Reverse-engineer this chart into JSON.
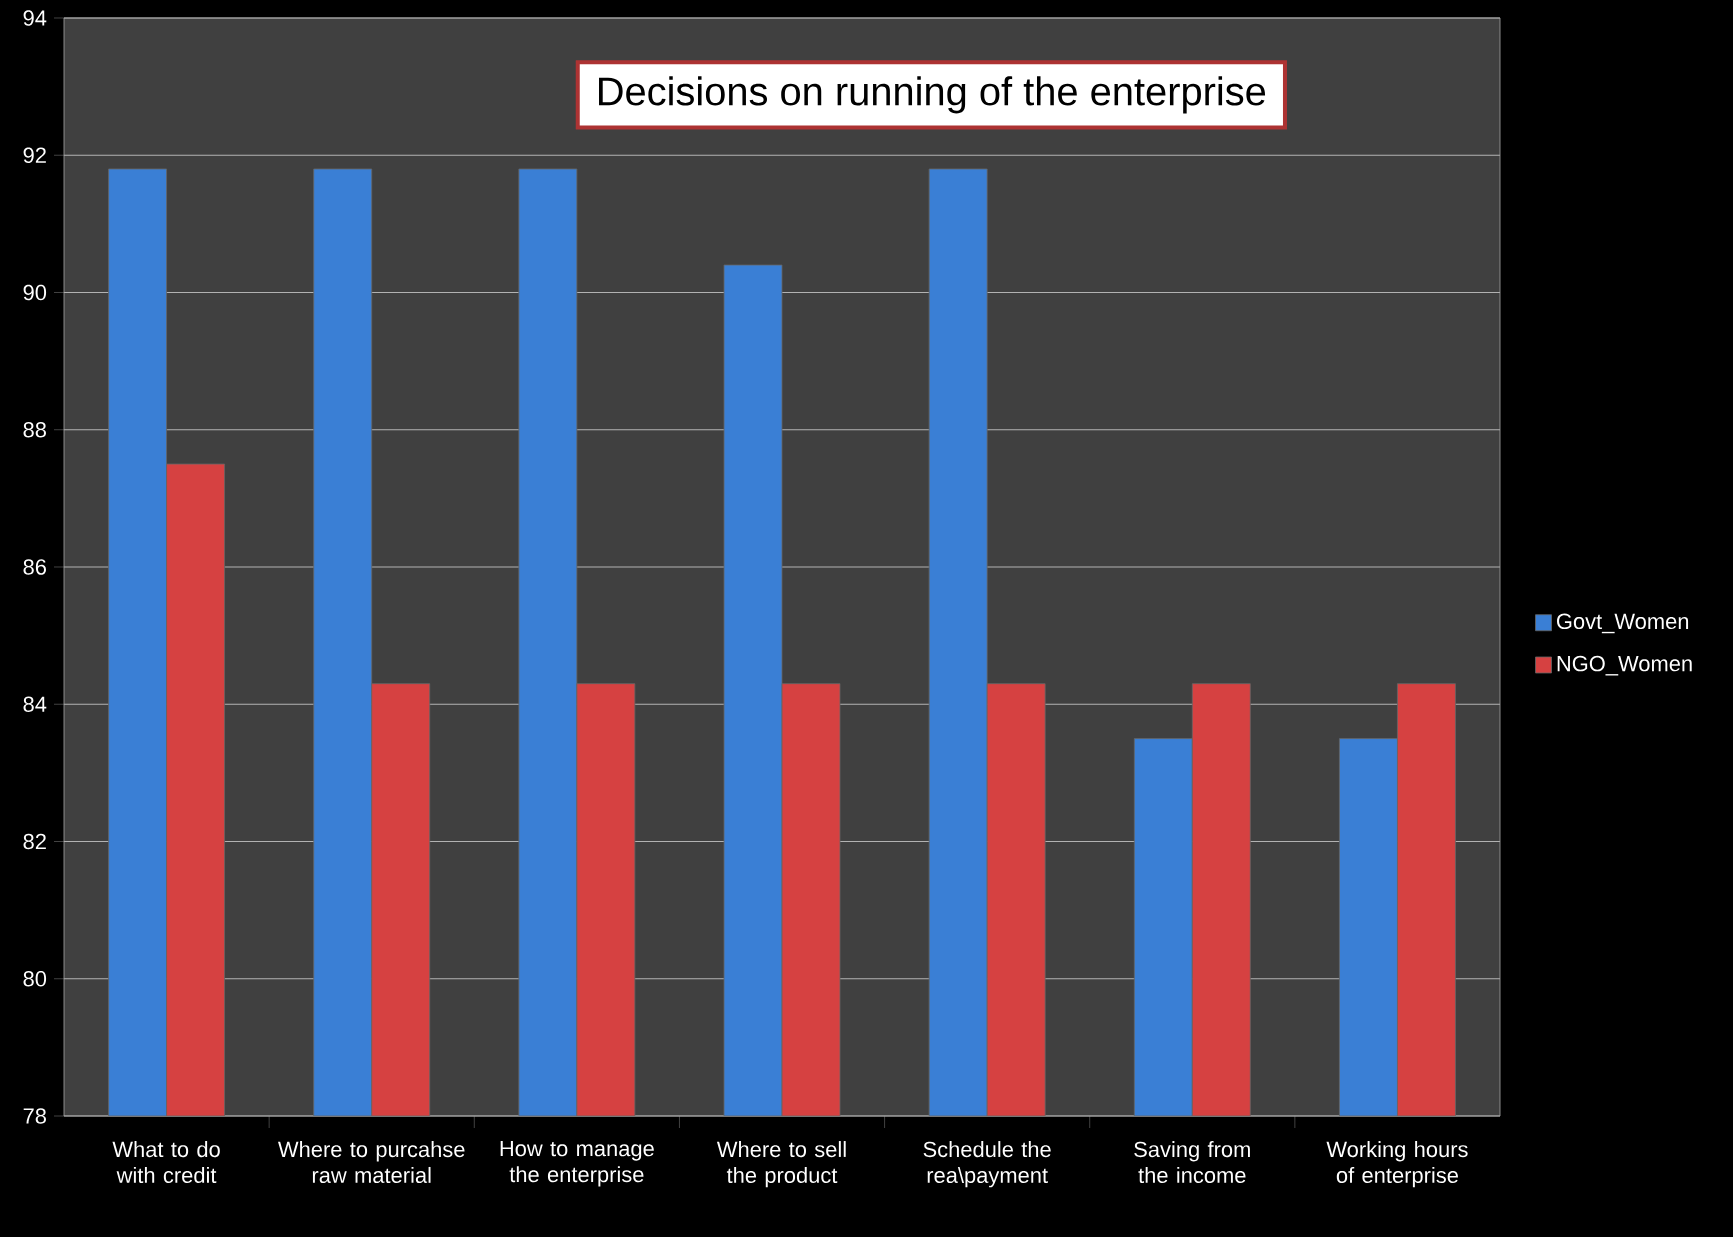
{
  "chart_data": {
    "type": "bar",
    "title": "Decisions on running of the enterprise",
    "categories": [
      "What to do with credit",
      "Where to purcahse raw material",
      "How to manage the enterprise",
      "Where to sell the product",
      "Schedule the rea\\payment",
      "Saving from the income",
      "Working hours of enterprise"
    ],
    "series": [
      {
        "name": "Govt_Women",
        "color": "#3a7fd5",
        "values": [
          91.8,
          91.8,
          91.8,
          90.4,
          91.8,
          83.5,
          83.5
        ]
      },
      {
        "name": "NGO_Women",
        "color": "#d64141",
        "values": [
          87.5,
          84.3,
          84.3,
          84.3,
          84.3,
          84.3,
          84.3
        ]
      }
    ],
    "ylim": [
      78,
      94
    ],
    "yticks": [
      78,
      80,
      82,
      84,
      86,
      88,
      90,
      92,
      94
    ],
    "grid": "y",
    "legend": "right"
  }
}
